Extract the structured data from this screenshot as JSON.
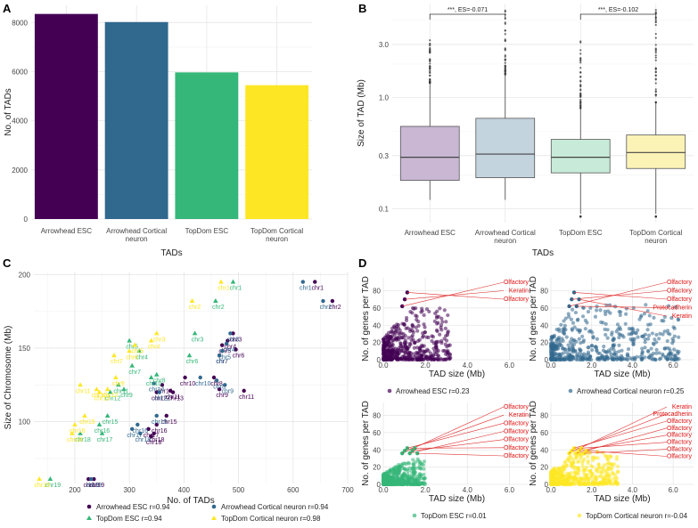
{
  "chart_data": [
    {
      "panel": "A",
      "type": "bar",
      "xlabel": "TADs",
      "ylabel": "No. of TADs",
      "categories": [
        "Arrowhead ESC",
        "Arrowhead Cortical\nneuron",
        "TopDom ESC",
        "TopDom Cortical\nneuron"
      ],
      "values": [
        8350,
        8020,
        5970,
        5450
      ],
      "colors": [
        "#440154",
        "#31688e",
        "#35b779",
        "#fde725"
      ],
      "yticks": [
        "0",
        "2000",
        "4000",
        "6000",
        "8000"
      ],
      "ylim": [
        0,
        8700
      ],
      "grid": true
    },
    {
      "panel": "B",
      "type": "box",
      "xlabel": "TADs",
      "ylabel": "Size of TAD (Mb)",
      "scale": "log",
      "yticks": [
        "0.1",
        "0.3",
        "1.0",
        "3.0"
      ],
      "ylim": [
        0.075,
        7.0
      ],
      "categories": [
        "Arrowhead ESC",
        "Arrowhead Cortical\nneuron",
        "TopDom ESC",
        "TopDom Cortical\nneuron"
      ],
      "boxes": [
        {
          "q1": 0.18,
          "median": 0.29,
          "q3": 0.55,
          "whisker_low": 0.12,
          "whisker_high": 1.35,
          "color": "#c9b7d4"
        },
        {
          "q1": 0.19,
          "median": 0.31,
          "q3": 0.65,
          "whisker_low": 0.12,
          "whisker_high": 1.6,
          "color": "#c4d4de"
        },
        {
          "q1": 0.21,
          "median": 0.29,
          "q3": 0.42,
          "whisker_low": 0.09,
          "whisker_high": 0.8,
          "color": "#c7ebd8"
        },
        {
          "q1": 0.23,
          "median": 0.32,
          "q3": 0.46,
          "whisker_low": 0.09,
          "whisker_high": 0.9,
          "color": "#fbf3b6"
        }
      ],
      "annotations": [
        "***, ES=-0.071",
        "***, ES=-0.102"
      ],
      "grid": true
    },
    {
      "panel": "C",
      "type": "scatter",
      "xlabel": "No. of TADs",
      "ylabel": "Size of Chromosome (Mb)",
      "xticks": [
        "200",
        "300",
        "400",
        "500",
        "600",
        "700"
      ],
      "yticks": [
        "100",
        "150",
        "200"
      ],
      "xlim": [
        125,
        700
      ],
      "ylim": [
        58,
        202
      ],
      "legend_position": "bottom",
      "series": [
        {
          "name": "Arrowhead ESC r=0.94",
          "color": "#440154",
          "marker": "circle",
          "points": [
            [
              640,
              195,
              "chr1"
            ],
            [
              672,
              182,
              "chr2"
            ],
            [
              490,
              160,
              "chr3"
            ],
            [
              480,
              155,
              "chr4"
            ],
            [
              470,
              152,
              "chr5"
            ],
            [
              495,
              149,
              "chr6"
            ],
            [
              465,
              145,
              "chr7"
            ],
            [
              402,
              130,
              "chr10"
            ],
            [
              465,
              122,
              "chr9"
            ],
            [
              375,
              121,
              "chr11"
            ],
            [
              380,
              120,
              "chr13"
            ],
            [
              360,
              125,
              "chr14"
            ],
            [
              368,
              104,
              "chr15"
            ],
            [
              350,
              98,
              "chr16"
            ],
            [
              335,
              95,
              "chr17"
            ],
            [
              340,
              90,
              "chr18"
            ],
            [
              235,
              61,
              "chr19"
            ],
            [
              455,
              130,
              "chr8"
            ],
            [
              510,
              121,
              "chr11"
            ],
            [
              350,
              120,
              "chr12"
            ],
            [
              345,
              92,
              "chr18"
            ],
            [
              225,
              61,
              "chr19"
            ]
          ]
        },
        {
          "name": "Arrowhead Cortical neuron r=0.94",
          "color": "#31688e",
          "marker": "circle",
          "points": [
            [
              618,
              195,
              "chr1"
            ],
            [
              655,
              182,
              "chr2"
            ],
            [
              485,
              160,
              "chr3"
            ],
            [
              478,
              153,
              "chr4"
            ],
            [
              470,
              148,
              "chr5"
            ],
            [
              465,
              145,
              "chr7"
            ],
            [
              430,
              130,
              "chr10"
            ],
            [
              460,
              128,
              "chr8"
            ],
            [
              475,
              125,
              "chr9"
            ],
            [
              345,
              126,
              "chr14"
            ],
            [
              355,
              120,
              "chr12"
            ],
            [
              350,
              104,
              "chr15"
            ],
            [
              315,
              98,
              "chr16"
            ],
            [
              305,
              95,
              "chr17"
            ],
            [
              320,
              92,
              "chr18"
            ],
            [
              230,
              61,
              "chr19"
            ]
          ]
        },
        {
          "name": "TopDom ESC r=0.94",
          "color": "#35b779",
          "marker": "triangle",
          "points": [
            [
              490,
              195,
              "chr1"
            ],
            [
              458,
              182,
              "chr2"
            ],
            [
              420,
              160,
              "chr3"
            ],
            [
              300,
              155,
              "chr5"
            ],
            [
              318,
              148,
              "chr4"
            ],
            [
              410,
              145,
              "chr6"
            ],
            [
              305,
              138,
              "chr7"
            ],
            [
              350,
              132,
              "chr8"
            ],
            [
              280,
              125,
              "chr11"
            ],
            [
              265,
              120,
              "chr12"
            ],
            [
              290,
              122,
              "chr9"
            ],
            [
              260,
              104,
              "chr15"
            ],
            [
              245,
              98,
              "chr16"
            ],
            [
              250,
              92,
              "chr17"
            ],
            [
              210,
              92,
              "chr18"
            ],
            [
              155,
              61,
              "chr19"
            ],
            [
              340,
              130,
              "chr10"
            ]
          ]
        },
        {
          "name": "TopDom Cortical neuron r=0.98",
          "color": "#fde725",
          "marker": "triangle",
          "points": [
            [
              468,
              195,
              "chr1"
            ],
            [
              415,
              182,
              "chr2"
            ],
            [
              350,
              160,
              "chr3"
            ],
            [
              340,
              155,
              "chr4"
            ],
            [
              310,
              152,
              "chr5"
            ],
            [
              300,
              148,
              "chr6"
            ],
            [
              272,
              145,
              "chr7"
            ],
            [
              210,
              125,
              "chr11"
            ],
            [
              260,
              122,
              "chr12"
            ],
            [
              245,
              120,
              "chr13"
            ],
            [
              218,
              104,
              "chr15"
            ],
            [
              200,
              98,
              "chr16"
            ],
            [
              195,
              92,
              "chr18"
            ],
            [
              135,
              61,
              "chr19"
            ],
            [
              275,
              130,
              "chr9"
            ],
            [
              240,
              122,
              "chr10"
            ]
          ]
        }
      ]
    },
    {
      "panel": "D",
      "type": "scatter",
      "subplots": [
        {
          "legend": "Arrowhead ESC r=0.23",
          "color": "#440154",
          "labels": [
            "Olfactory",
            "Keratin",
            "Olfactory"
          ],
          "xlabel": "TAD size (Mb)",
          "ylabel": "No. of genes per TAD"
        },
        {
          "legend": "Arrowhead Cortical neuron r=0.25",
          "color": "#31688e",
          "labels": [
            "Olfactory",
            "Olfactory",
            "Olfactory",
            "Protocadherin",
            "Keratin"
          ],
          "xlabel": "TAD size (Mb)",
          "ylabel": "No. of genes per TAD"
        },
        {
          "legend": "TopDom ESC r=0.01",
          "color": "#35b779",
          "labels": [
            "Olfactory",
            "Keratin",
            "Olfactory",
            "Olfactory",
            "Olfactory",
            "Olfactory",
            "Olfactory"
          ],
          "xlabel": "TAD size (Mb)",
          "ylabel": "No. of genes per TAD"
        },
        {
          "legend": "TopDom Cortical neuron r=-0.04",
          "color": "#fde725",
          "labels": [
            "Keratin",
            "Protocadherin",
            "Olfactory",
            "Olfactory",
            "Olfactory",
            "Olfactory",
            "Olfactory",
            "Olfactory"
          ],
          "xlabel": "TAD size (Mb)",
          "ylabel": "No. of genes per TAD"
        }
      ],
      "xticks": [
        "0.0",
        "2.0",
        "4.0",
        "6.0"
      ],
      "yticks": [
        "0",
        "20",
        "40",
        "60",
        "80"
      ],
      "xlim": [
        0,
        7
      ],
      "ylim": [
        0,
        95
      ]
    }
  ],
  "panel_letters": [
    "A",
    "B",
    "C",
    "D"
  ]
}
